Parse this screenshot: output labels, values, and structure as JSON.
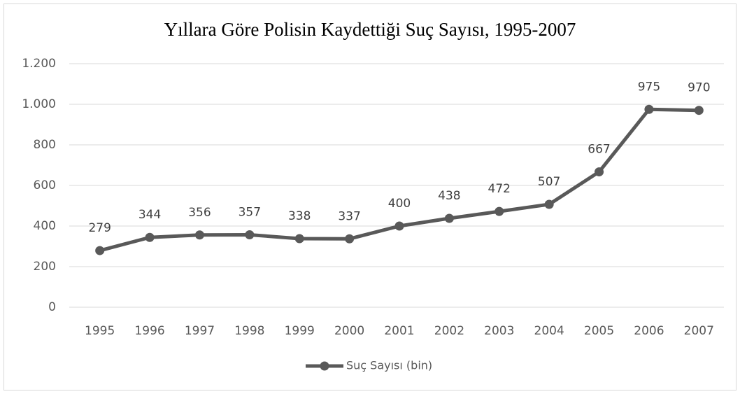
{
  "chart_data": {
    "type": "line",
    "title": "Yıllara Göre Polisin Kaydettiği Suç Sayısı, 1995-2007",
    "categories": [
      "1995",
      "1996",
      "1997",
      "1998",
      "1999",
      "2000",
      "2001",
      "2002",
      "2003",
      "2004",
      "2005",
      "2006",
      "2007"
    ],
    "series": [
      {
        "name": "Suç Sayısı (bin)",
        "color": "#595959",
        "values": [
          279,
          344,
          356,
          357,
          338,
          337,
          400,
          438,
          472,
          507,
          667,
          975,
          970
        ]
      }
    ],
    "ylim": [
      0,
      1200
    ],
    "yticks": [
      0,
      200,
      400,
      600,
      800,
      {
        "value": 1000,
        "label": "1.000"
      },
      {
        "value": 1200,
        "label": "1.200"
      }
    ],
    "grid": true,
    "legend": "bottom"
  }
}
